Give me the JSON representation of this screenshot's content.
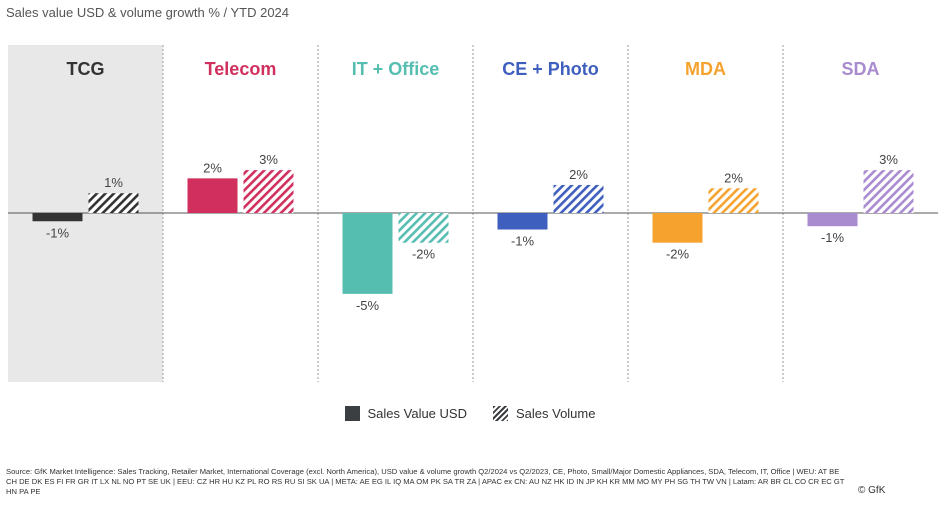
{
  "title": "Sales value USD & volume growth % / YTD 2024",
  "chart_data": {
    "type": "bar",
    "title": "Sales value USD & volume growth % / YTD 2024",
    "categories": [
      "TCG",
      "Telecom",
      "IT + Office",
      "CE + Photo",
      "MDA",
      "SDA"
    ],
    "category_colors": [
      "#333333",
      "#d1305e",
      "#56bdb1",
      "#3f5fbf",
      "#f6a22e",
      "#a98bd0"
    ],
    "highlighted_category": "TCG",
    "series": [
      {
        "name": "Sales Value USD",
        "style": "solid",
        "values": [
          -0.5,
          2.1,
          -4.9,
          -1.0,
          -1.8,
          -0.8
        ],
        "labels": [
          "-1%",
          "2%",
          "-5%",
          "-1%",
          "-2%",
          "-1%"
        ]
      },
      {
        "name": "Sales Volume",
        "style": "hatched",
        "values": [
          1.2,
          2.6,
          -1.8,
          1.7,
          1.5,
          2.6
        ],
        "labels": [
          "1%",
          "3%",
          "-2%",
          "2%",
          "2%",
          "3%"
        ]
      }
    ],
    "ylim": [
      -6,
      6
    ],
    "xlabel": "",
    "ylabel": "",
    "grid": false,
    "legend": "bottom-center"
  },
  "legend": {
    "value_label": "Sales Value USD",
    "volume_label": "Sales Volume"
  },
  "source": "Source: GfK Market Intelligence: Sales Tracking, Retailer Market, International Coverage (excl. North America), USD value & volume growth Q2/2024 vs Q2/2023, CE, Photo, Small/Major Domestic Appliances, SDA, Telecom, IT, Office | WEU: AT BE CH DE DK ES FI FR GR IT LX NL NO PT SE UK | EEU: CZ HR HU KZ PL RO RS RU SI SK UA | META: AE EG IL IQ MA OM PK SA TR ZA | APAC ex CN: AU NZ HK ID IN JP KH KR MM MO MY PH SG TH TW VN | Latam: AR BR CL CO CR EC GT HN PA PE",
  "copyright": "© GfK"
}
